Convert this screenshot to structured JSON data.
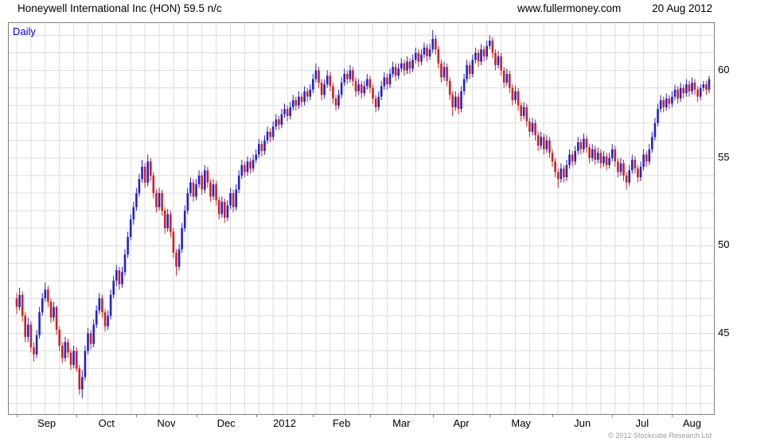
{
  "header": {
    "title": "Honeywell International Inc (HON) 59.5 n/c",
    "website": "www.fullermoney.com",
    "date": "20 Aug 2012"
  },
  "chart_label": "Daily",
  "copyright": "© 2012 Stockcube Research Ltd",
  "chart_data": {
    "type": "candlestick",
    "title": "Honeywell International Inc (HON) 59.5 n/c",
    "frequency": "Daily",
    "last_price": 59.5,
    "xlabel": "",
    "ylabel": "",
    "ylim": [
      40.4,
      62.7
    ],
    "yticks": [
      45,
      50,
      55,
      60
    ],
    "grid": true,
    "legend": "none",
    "colors": {
      "up": "#2222cc",
      "down": "#cc2222"
    },
    "months": [
      {
        "label": "Sep",
        "start": 0
      },
      {
        "label": "Oct",
        "start": 21
      },
      {
        "label": "Nov",
        "start": 42
      },
      {
        "label": "Dec",
        "start": 63
      },
      {
        "label": "2012",
        "start": 84
      },
      {
        "label": "Feb",
        "start": 104
      },
      {
        "label": "Mar",
        "start": 124
      },
      {
        "label": "Apr",
        "start": 146
      },
      {
        "label": "May",
        "start": 166
      },
      {
        "label": "Jun",
        "start": 188
      },
      {
        "label": "Jul",
        "start": 209
      },
      {
        "label": "Aug",
        "start": 230
      }
    ],
    "ohlc_format": [
      "open",
      "high",
      "low",
      "close"
    ],
    "candles": [
      [
        47.0,
        47.3,
        46.1,
        46.5
      ],
      [
        46.5,
        47.6,
        46.3,
        47.2
      ],
      [
        47.2,
        47.4,
        45.7,
        46.0
      ],
      [
        46.0,
        46.2,
        44.5,
        44.8
      ],
      [
        44.8,
        45.9,
        44.5,
        45.5
      ],
      [
        45.5,
        45.7,
        43.9,
        44.2
      ],
      [
        44.2,
        44.5,
        43.4,
        43.8
      ],
      [
        43.8,
        45.2,
        43.6,
        44.9
      ],
      [
        44.9,
        46.5,
        44.7,
        46.2
      ],
      [
        46.2,
        47.3,
        46.0,
        47.0
      ],
      [
        47.0,
        47.9,
        46.8,
        47.5
      ],
      [
        47.5,
        47.7,
        46.5,
        46.8
      ],
      [
        46.8,
        47.0,
        45.6,
        45.9
      ],
      [
        45.9,
        46.8,
        45.7,
        46.5
      ],
      [
        46.5,
        46.6,
        44.9,
        45.2
      ],
      [
        45.2,
        45.4,
        44.0,
        44.3
      ],
      [
        44.3,
        44.5,
        43.3,
        43.6
      ],
      [
        43.6,
        44.8,
        43.4,
        44.5
      ],
      [
        44.5,
        44.7,
        43.6,
        43.9
      ],
      [
        43.9,
        44.1,
        42.9,
        43.2
      ],
      [
        43.2,
        44.3,
        43.0,
        44.0
      ],
      [
        44.0,
        44.2,
        42.8,
        43.0
      ],
      [
        43.0,
        43.2,
        41.5,
        41.8
      ],
      [
        41.8,
        42.9,
        41.3,
        42.5
      ],
      [
        42.5,
        44.3,
        42.3,
        44.0
      ],
      [
        44.0,
        45.3,
        43.8,
        45.0
      ],
      [
        45.0,
        45.2,
        44.1,
        44.4
      ],
      [
        44.4,
        45.8,
        44.2,
        45.5
      ],
      [
        45.5,
        46.6,
        45.3,
        46.3
      ],
      [
        46.3,
        47.3,
        46.1,
        47.0
      ],
      [
        47.0,
        47.2,
        45.9,
        46.2
      ],
      [
        46.2,
        46.4,
        45.1,
        45.4
      ],
      [
        45.4,
        46.3,
        45.2,
        46.0
      ],
      [
        46.0,
        47.5,
        45.8,
        47.2
      ],
      [
        47.2,
        48.3,
        47.0,
        48.0
      ],
      [
        48.0,
        48.9,
        47.7,
        48.6
      ],
      [
        48.6,
        48.8,
        47.5,
        47.8
      ],
      [
        47.8,
        48.8,
        47.6,
        48.5
      ],
      [
        48.5,
        49.8,
        48.3,
        49.5
      ],
      [
        49.5,
        50.8,
        49.3,
        50.5
      ],
      [
        50.5,
        51.8,
        50.3,
        51.5
      ],
      [
        51.5,
        52.5,
        51.2,
        52.2
      ],
      [
        52.2,
        53.3,
        52.0,
        53.0
      ],
      [
        53.0,
        54.1,
        52.8,
        53.8
      ],
      [
        53.8,
        54.9,
        53.6,
        54.5
      ],
      [
        54.5,
        54.7,
        53.3,
        53.6
      ],
      [
        53.6,
        55.2,
        53.4,
        54.8
      ],
      [
        54.8,
        55.0,
        53.7,
        54.0
      ],
      [
        54.0,
        54.2,
        52.7,
        53.0
      ],
      [
        53.0,
        53.2,
        51.9,
        52.2
      ],
      [
        52.2,
        53.3,
        52.0,
        53.0
      ],
      [
        53.0,
        53.2,
        51.7,
        52.0
      ],
      [
        52.0,
        52.2,
        50.7,
        51.0
      ],
      [
        51.0,
        52.1,
        50.8,
        51.8
      ],
      [
        51.8,
        52.0,
        50.5,
        50.8
      ],
      [
        50.8,
        51.0,
        49.3,
        49.6
      ],
      [
        49.6,
        49.8,
        48.3,
        48.8
      ],
      [
        48.8,
        50.1,
        48.6,
        49.8
      ],
      [
        49.8,
        51.3,
        49.6,
        51.0
      ],
      [
        51.0,
        52.3,
        50.8,
        52.0
      ],
      [
        52.0,
        53.3,
        51.8,
        53.0
      ],
      [
        53.0,
        53.9,
        52.8,
        53.6
      ],
      [
        53.6,
        53.8,
        52.5,
        52.8
      ],
      [
        52.8,
        53.8,
        52.6,
        53.5
      ],
      [
        53.5,
        54.3,
        53.3,
        54.0
      ],
      [
        54.0,
        54.2,
        52.9,
        53.2
      ],
      [
        53.2,
        54.6,
        53.0,
        54.3
      ],
      [
        54.3,
        54.5,
        53.3,
        53.6
      ],
      [
        53.6,
        53.8,
        52.5,
        52.8
      ],
      [
        52.8,
        53.8,
        52.6,
        53.5
      ],
      [
        53.5,
        53.7,
        52.3,
        52.6
      ],
      [
        52.6,
        52.8,
        51.5,
        51.8
      ],
      [
        51.8,
        52.8,
        51.6,
        52.5
      ],
      [
        52.5,
        52.7,
        51.3,
        51.6
      ],
      [
        51.6,
        52.6,
        51.4,
        52.3
      ],
      [
        52.3,
        53.3,
        52.1,
        53.0
      ],
      [
        53.0,
        53.2,
        51.9,
        52.2
      ],
      [
        52.2,
        53.5,
        52.0,
        53.2
      ],
      [
        53.2,
        54.3,
        53.0,
        54.0
      ],
      [
        54.0,
        54.9,
        53.8,
        54.6
      ],
      [
        54.6,
        54.8,
        53.9,
        54.2
      ],
      [
        54.2,
        55.1,
        54.0,
        54.8
      ],
      [
        54.8,
        55.0,
        54.1,
        54.4
      ],
      [
        54.4,
        55.2,
        54.2,
        54.9
      ],
      [
        54.9,
        55.5,
        54.7,
        55.2
      ],
      [
        55.2,
        56.1,
        55.0,
        55.8
      ],
      [
        55.8,
        56.0,
        55.1,
        55.4
      ],
      [
        55.4,
        56.3,
        55.2,
        56.0
      ],
      [
        56.0,
        56.8,
        55.8,
        56.5
      ],
      [
        56.5,
        56.7,
        55.9,
        56.2
      ],
      [
        56.2,
        57.1,
        56.0,
        56.8
      ],
      [
        56.8,
        57.5,
        56.6,
        57.2
      ],
      [
        57.2,
        57.4,
        56.6,
        56.9
      ],
      [
        56.9,
        57.8,
        56.7,
        57.5
      ],
      [
        57.5,
        58.1,
        57.3,
        57.8
      ],
      [
        57.8,
        58.0,
        57.1,
        57.4
      ],
      [
        57.4,
        58.2,
        57.2,
        57.9
      ],
      [
        57.9,
        58.6,
        57.7,
        58.3
      ],
      [
        58.3,
        58.5,
        57.7,
        58.0
      ],
      [
        58.0,
        58.8,
        57.8,
        58.5
      ],
      [
        58.5,
        58.7,
        57.9,
        58.2
      ],
      [
        58.2,
        59.1,
        58.0,
        58.8
      ],
      [
        58.8,
        59.0,
        58.2,
        58.5
      ],
      [
        58.5,
        59.2,
        58.3,
        58.9
      ],
      [
        58.9,
        59.8,
        58.7,
        59.5
      ],
      [
        59.5,
        60.4,
        59.3,
        60.0
      ],
      [
        60.0,
        60.2,
        59.0,
        59.3
      ],
      [
        59.3,
        59.5,
        58.3,
        58.6
      ],
      [
        58.6,
        59.5,
        58.4,
        59.2
      ],
      [
        59.2,
        60.0,
        59.0,
        59.7
      ],
      [
        59.7,
        59.9,
        58.8,
        59.1
      ],
      [
        59.1,
        59.3,
        58.1,
        58.4
      ],
      [
        58.4,
        58.6,
        57.7,
        58.0
      ],
      [
        58.0,
        58.9,
        57.8,
        58.6
      ],
      [
        58.6,
        59.6,
        58.4,
        59.3
      ],
      [
        59.3,
        60.1,
        59.1,
        59.8
      ],
      [
        59.8,
        60.0,
        59.2,
        59.5
      ],
      [
        59.5,
        60.3,
        59.3,
        60.0
      ],
      [
        60.0,
        60.2,
        59.1,
        59.4
      ],
      [
        59.4,
        59.6,
        58.5,
        58.8
      ],
      [
        58.8,
        59.5,
        58.6,
        59.2
      ],
      [
        59.2,
        59.4,
        58.4,
        58.7
      ],
      [
        58.7,
        59.4,
        58.5,
        59.1
      ],
      [
        59.1,
        59.8,
        58.9,
        59.5
      ],
      [
        59.5,
        59.7,
        58.7,
        59.0
      ],
      [
        59.0,
        59.2,
        58.1,
        58.4
      ],
      [
        58.4,
        58.6,
        57.6,
        57.9
      ],
      [
        57.9,
        58.8,
        57.7,
        58.5
      ],
      [
        58.5,
        59.4,
        58.3,
        59.1
      ],
      [
        59.1,
        59.9,
        58.9,
        59.6
      ],
      [
        59.6,
        59.8,
        58.9,
        59.2
      ],
      [
        59.2,
        60.1,
        59.0,
        59.8
      ],
      [
        59.8,
        60.5,
        59.6,
        60.2
      ],
      [
        60.2,
        60.4,
        59.4,
        59.7
      ],
      [
        59.7,
        60.4,
        59.5,
        60.1
      ],
      [
        60.1,
        60.7,
        59.9,
        60.4
      ],
      [
        60.4,
        60.6,
        59.7,
        60.0
      ],
      [
        60.0,
        60.8,
        59.8,
        60.5
      ],
      [
        60.5,
        60.7,
        59.8,
        60.1
      ],
      [
        60.1,
        60.9,
        59.9,
        60.6
      ],
      [
        60.6,
        61.3,
        60.4,
        61.0
      ],
      [
        61.0,
        61.2,
        60.2,
        60.5
      ],
      [
        60.5,
        61.2,
        60.3,
        60.9
      ],
      [
        60.9,
        61.6,
        60.7,
        61.3
      ],
      [
        61.3,
        61.5,
        60.5,
        60.8
      ],
      [
        60.8,
        61.5,
        60.6,
        61.2
      ],
      [
        61.2,
        62.3,
        61.0,
        61.8
      ],
      [
        61.8,
        62.0,
        60.9,
        61.2
      ],
      [
        61.2,
        61.4,
        60.1,
        60.4
      ],
      [
        60.4,
        60.6,
        59.3,
        59.6
      ],
      [
        59.6,
        60.5,
        59.4,
        60.2
      ],
      [
        60.2,
        60.4,
        59.1,
        59.4
      ],
      [
        59.4,
        59.6,
        58.3,
        58.6
      ],
      [
        58.6,
        58.8,
        57.4,
        57.9
      ],
      [
        57.9,
        58.8,
        57.7,
        58.5
      ],
      [
        58.5,
        58.7,
        57.5,
        57.8
      ],
      [
        57.8,
        59.1,
        57.6,
        58.8
      ],
      [
        58.8,
        59.8,
        58.6,
        59.5
      ],
      [
        59.5,
        60.6,
        59.3,
        60.3
      ],
      [
        60.3,
        60.5,
        59.5,
        59.8
      ],
      [
        59.8,
        60.9,
        59.6,
        60.6
      ],
      [
        60.6,
        61.3,
        60.4,
        61.0
      ],
      [
        61.0,
        61.2,
        60.2,
        60.5
      ],
      [
        60.5,
        61.5,
        60.3,
        61.2
      ],
      [
        61.2,
        61.4,
        60.5,
        60.8
      ],
      [
        60.8,
        61.7,
        60.6,
        61.4
      ],
      [
        61.4,
        62.0,
        61.2,
        61.7
      ],
      [
        61.7,
        61.9,
        60.7,
        61.0
      ],
      [
        61.0,
        61.2,
        60.0,
        60.3
      ],
      [
        60.3,
        61.1,
        60.1,
        60.8
      ],
      [
        60.8,
        61.0,
        59.7,
        60.0
      ],
      [
        60.0,
        60.2,
        59.0,
        59.3
      ],
      [
        59.3,
        60.1,
        59.1,
        59.8
      ],
      [
        59.8,
        60.0,
        58.7,
        59.0
      ],
      [
        59.0,
        59.2,
        58.0,
        58.3
      ],
      [
        58.3,
        59.1,
        58.1,
        58.8
      ],
      [
        58.8,
        59.0,
        57.7,
        58.0
      ],
      [
        58.0,
        58.2,
        57.1,
        57.4
      ],
      [
        57.4,
        58.2,
        57.2,
        57.9
      ],
      [
        57.9,
        58.1,
        56.8,
        57.1
      ],
      [
        57.1,
        57.3,
        56.2,
        56.5
      ],
      [
        56.5,
        57.3,
        56.3,
        57.0
      ],
      [
        57.0,
        57.2,
        56.0,
        56.3
      ],
      [
        56.3,
        56.5,
        55.4,
        55.7
      ],
      [
        55.7,
        56.5,
        55.5,
        56.2
      ],
      [
        56.2,
        56.4,
        55.2,
        55.5
      ],
      [
        55.5,
        56.3,
        55.3,
        56.0
      ],
      [
        56.0,
        56.2,
        55.0,
        55.3
      ],
      [
        55.3,
        55.5,
        54.5,
        54.8
      ],
      [
        54.8,
        55.0,
        53.9,
        54.2
      ],
      [
        54.2,
        54.4,
        53.3,
        53.8
      ],
      [
        53.8,
        54.7,
        53.6,
        54.4
      ],
      [
        54.4,
        54.6,
        53.6,
        53.9
      ],
      [
        53.9,
        54.9,
        53.7,
        54.6
      ],
      [
        54.6,
        55.5,
        54.4,
        55.2
      ],
      [
        55.2,
        55.4,
        54.5,
        54.8
      ],
      [
        54.8,
        55.7,
        54.6,
        55.4
      ],
      [
        55.4,
        56.2,
        55.2,
        55.9
      ],
      [
        55.9,
        56.1,
        55.2,
        55.5
      ],
      [
        55.5,
        56.4,
        55.3,
        56.1
      ],
      [
        56.1,
        56.3,
        55.3,
        55.6
      ],
      [
        55.6,
        55.8,
        54.7,
        55.0
      ],
      [
        55.0,
        55.8,
        54.8,
        55.5
      ],
      [
        55.5,
        55.7,
        54.6,
        54.9
      ],
      [
        54.9,
        55.6,
        54.7,
        55.3
      ],
      [
        55.3,
        55.5,
        54.4,
        54.7
      ],
      [
        54.7,
        55.4,
        54.5,
        55.1
      ],
      [
        55.1,
        55.3,
        54.3,
        54.6
      ],
      [
        54.6,
        55.3,
        54.4,
        55.0
      ],
      [
        55.0,
        55.8,
        54.8,
        55.5
      ],
      [
        55.5,
        55.7,
        54.5,
        54.8
      ],
      [
        54.8,
        55.0,
        53.9,
        54.2
      ],
      [
        54.2,
        55.0,
        54.0,
        54.7
      ],
      [
        54.7,
        54.9,
        53.7,
        54.0
      ],
      [
        54.0,
        54.2,
        53.2,
        53.6
      ],
      [
        53.6,
        54.6,
        53.4,
        54.3
      ],
      [
        54.3,
        55.2,
        54.1,
        54.9
      ],
      [
        54.9,
        55.1,
        54.1,
        54.4
      ],
      [
        54.4,
        54.6,
        53.6,
        53.9
      ],
      [
        53.9,
        54.8,
        53.7,
        54.5
      ],
      [
        54.5,
        55.5,
        54.3,
        55.2
      ],
      [
        55.2,
        55.4,
        54.5,
        54.8
      ],
      [
        54.8,
        55.8,
        54.6,
        55.5
      ],
      [
        55.5,
        56.5,
        55.3,
        56.2
      ],
      [
        56.2,
        57.3,
        56.0,
        57.0
      ],
      [
        57.0,
        58.1,
        56.8,
        57.8
      ],
      [
        57.8,
        58.6,
        57.6,
        58.3
      ],
      [
        58.3,
        58.5,
        57.6,
        57.9
      ],
      [
        57.9,
        58.7,
        57.7,
        58.4
      ],
      [
        58.4,
        58.6,
        57.8,
        58.1
      ],
      [
        58.1,
        58.8,
        57.9,
        58.5
      ],
      [
        58.5,
        59.2,
        58.3,
        58.9
      ],
      [
        58.9,
        59.1,
        58.1,
        58.4
      ],
      [
        58.4,
        59.3,
        58.2,
        59.0
      ],
      [
        59.0,
        59.2,
        58.4,
        58.7
      ],
      [
        58.7,
        59.5,
        58.5,
        59.2
      ],
      [
        59.2,
        59.4,
        58.5,
        58.8
      ],
      [
        58.8,
        59.6,
        58.6,
        59.3
      ],
      [
        59.3,
        59.5,
        58.6,
        58.9
      ],
      [
        58.9,
        59.1,
        58.2,
        58.5
      ],
      [
        58.5,
        59.2,
        58.3,
        59.0
      ],
      [
        59.0,
        59.4,
        58.8,
        59.2
      ],
      [
        59.2,
        59.4,
        58.6,
        58.9
      ],
      [
        58.9,
        59.7,
        58.7,
        59.5
      ]
    ]
  }
}
